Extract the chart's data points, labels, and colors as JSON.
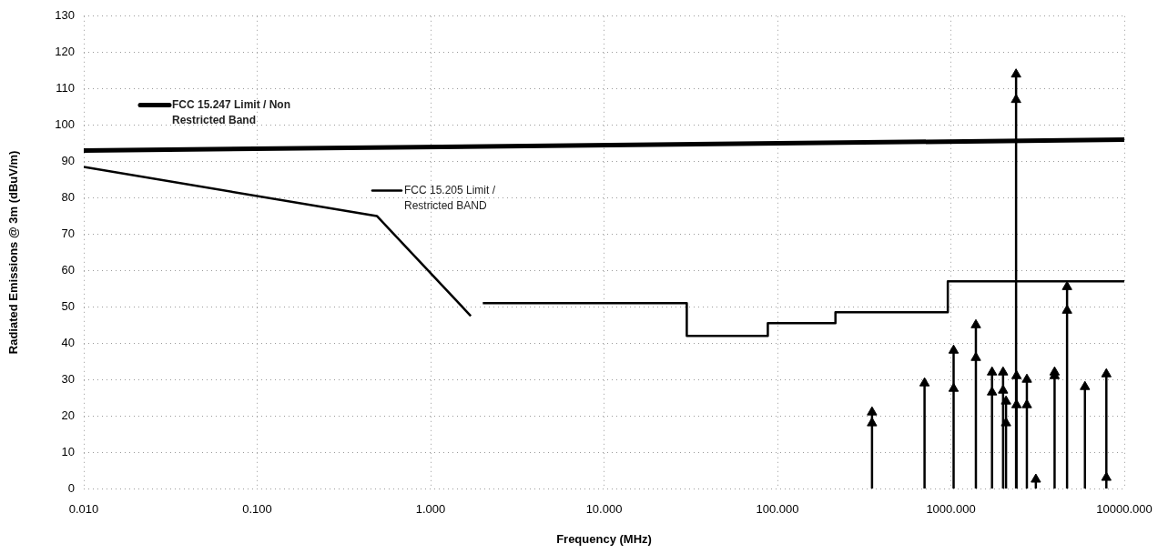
{
  "chart_data": {
    "type": "line",
    "xlabel": "Frequency (MHz)",
    "ylabel": "Radiated Emissions @ 3m (dBuV/m)",
    "log": "x",
    "grid": true,
    "legend": "top left",
    "xlim": [
      0.01,
      10000
    ],
    "xticks": [
      {
        "value": 0.01,
        "label": "0.010"
      },
      {
        "value": 0.1,
        "label": "0.100"
      },
      {
        "value": 1,
        "label": "1.000"
      },
      {
        "value": 10,
        "label": "10.000"
      },
      {
        "value": 100,
        "label": "100.000"
      },
      {
        "value": 1000,
        "label": "1000.000"
      },
      {
        "value": 10000,
        "label": "10000.000"
      }
    ],
    "ylim": [
      0,
      130
    ],
    "yticks": [
      0,
      10,
      20,
      30,
      40,
      50,
      60,
      70,
      80,
      90,
      100,
      110,
      120,
      130
    ],
    "series": [
      {
        "name": "FCC 15.247 Limit / Non Restricted Band",
        "marker": "none",
        "color": "#000000",
        "x": [
          0.01,
          10000
        ],
        "values": [
          93,
          96
        ]
      },
      {
        "name": "FCC 15.205 Limit / Restricted BAND",
        "marker": "none",
        "color": "#000000",
        "x": [
          0.01,
          0.49,
          1.705,
          1.8,
          2,
          30,
          30,
          88,
          88,
          216,
          216,
          960,
          960,
          10000
        ],
        "values": [
          88.5,
          75,
          47.5,
          null,
          51,
          51,
          42,
          42,
          45.5,
          45.5,
          48.5,
          48.5,
          57,
          57
        ]
      },
      {
        "type": "lollipop",
        "marker": "triangle",
        "color": "#000000",
        "x": [
          351,
          705,
          1037,
          1394,
          1727,
          2000,
          2080,
          2377,
          2390,
          2743,
          3090,
          3963,
          4677,
          5930,
          7880
        ],
        "values": [
          21,
          29,
          38,
          45,
          32,
          32,
          24,
          114,
          31,
          30,
          2.5,
          32,
          55.5,
          28,
          31.5
        ]
      },
      {
        "type": "scatter",
        "marker": "triangle",
        "color": "#000000",
        "x": [
          351,
          705,
          1037,
          1394,
          1727,
          2000,
          2080,
          2377,
          2390,
          2743,
          3090,
          3963,
          4677,
          5930,
          7880
        ],
        "values": [
          18,
          null,
          27.5,
          36,
          26.5,
          27,
          18,
          107,
          23,
          23,
          null,
          31,
          49,
          null,
          3
        ]
      }
    ]
  }
}
